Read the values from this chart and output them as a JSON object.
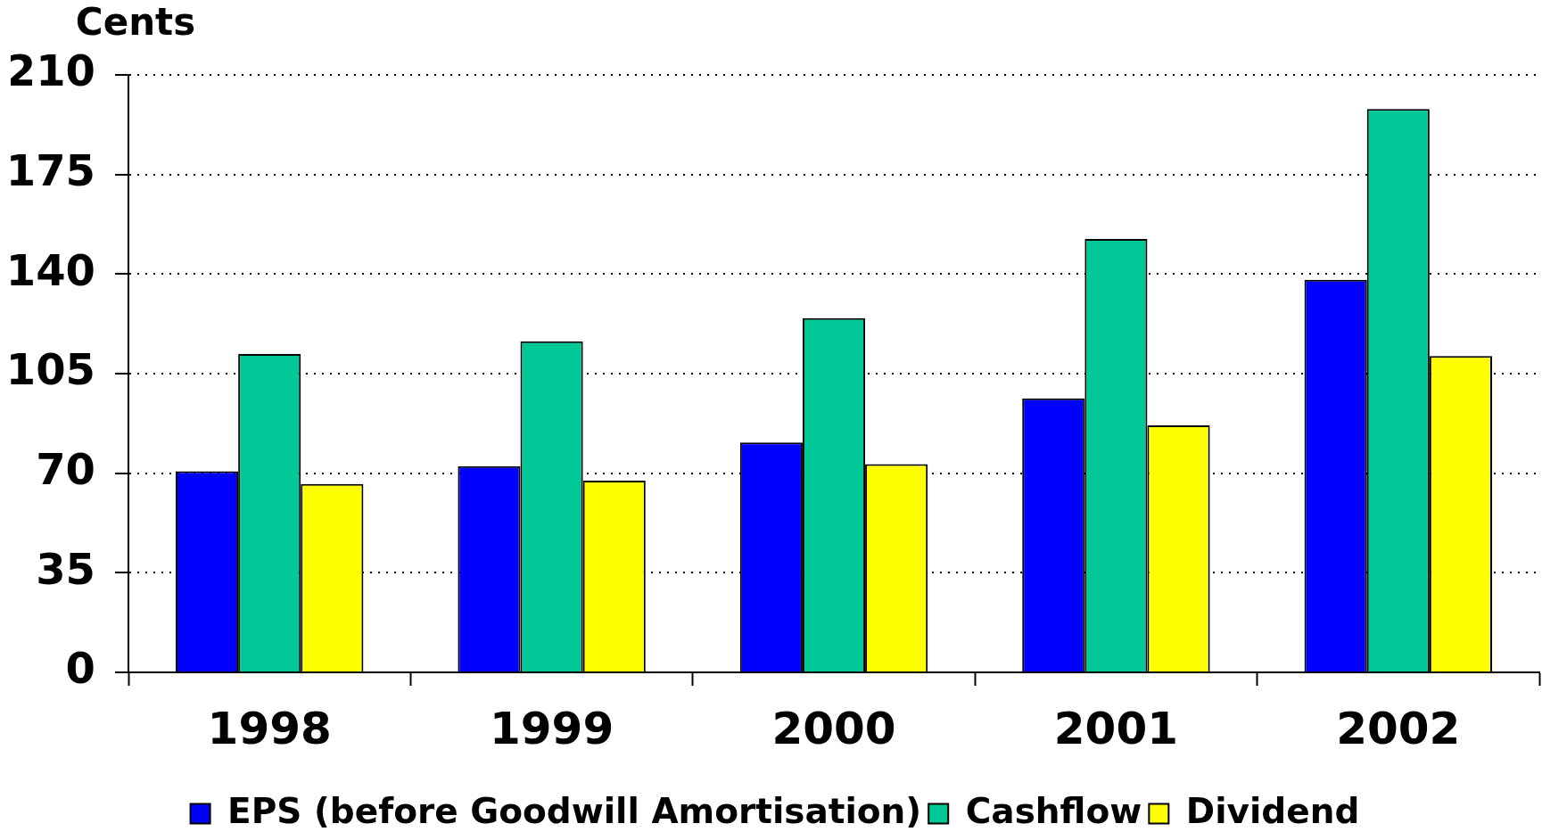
{
  "chart_data": {
    "type": "bar",
    "ylabel": "Cents",
    "categories": [
      "1998",
      "1999",
      "2000",
      "2001",
      "2002"
    ],
    "series": [
      {
        "name": "EPS (before Goodwill Amortisation)",
        "color": "#0000ff",
        "values": [
          70.7,
          72.5,
          80.8,
          96.3,
          138
        ]
      },
      {
        "name": "Cashflow",
        "color": "#00c896",
        "values": [
          111.9,
          116.4,
          124.5,
          152.3,
          198
        ]
      },
      {
        "name": "Dividend",
        "color": "#ffff00",
        "values": [
          66.2,
          67.4,
          73.2,
          86.8,
          111.2
        ]
      }
    ],
    "ylim": [
      0,
      210
    ],
    "yticks": [
      0,
      35,
      70,
      105,
      140,
      175,
      210
    ],
    "grid": "y",
    "legend": "bottom"
  }
}
